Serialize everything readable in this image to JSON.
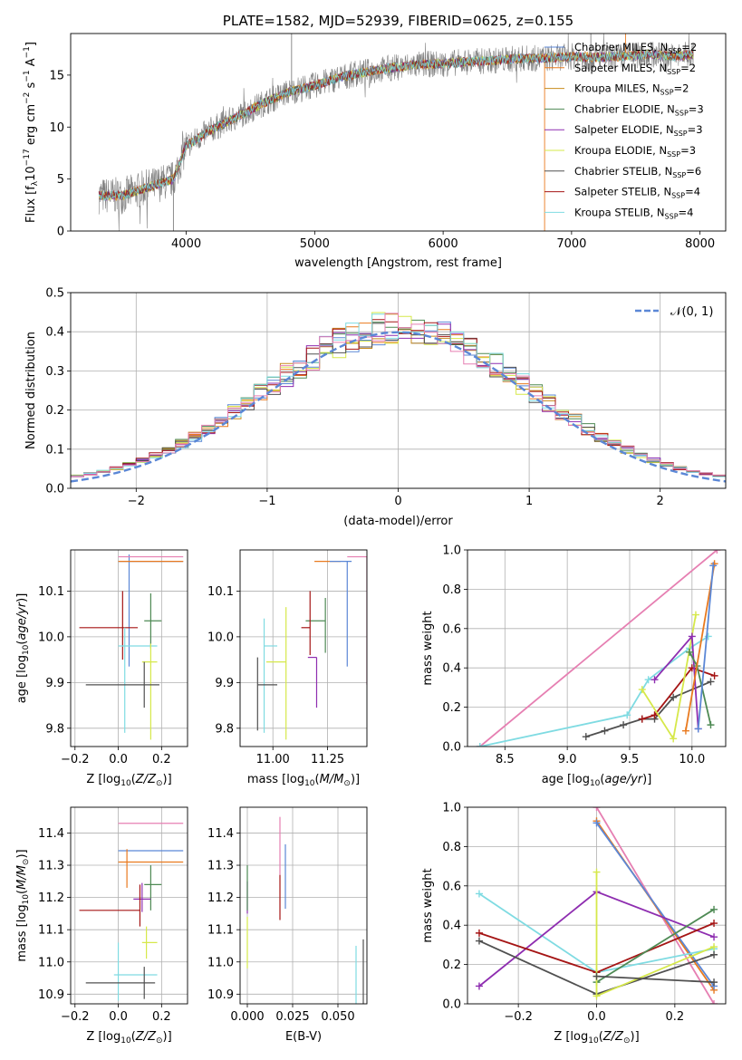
{
  "colors": {
    "chabrier_miles": "#5b87d6",
    "salpeter_miles": "#e97a1f",
    "kroupa_miles": "#c88b1c",
    "chabrier_elodie": "#4e8a54",
    "salpeter_elodie": "#8e2db0",
    "kroupa_elodie": "#d6e84a",
    "chabrier_stelib": "#505050",
    "salpeter_stelib": "#a51515",
    "kroupa_stelib": "#7fdbe2",
    "pink": "#e67fb2",
    "data": "#808080",
    "gauss": "#5b87d6"
  },
  "chart_data": [
    {
      "id": "spectrum",
      "type": "line",
      "title": "PLATE=1582, MJD=52939, FIBERID=0625, z=0.155",
      "xlabel": "wavelength [Angstrom, rest frame]",
      "ylabel": "Flux [f_λ10^-17 erg cm^-2 s^-1 A^-1]",
      "xlim": [
        3100,
        8200
      ],
      "ylim": [
        0,
        19
      ],
      "xticks": [
        4000,
        5000,
        6000,
        7000,
        8000
      ],
      "yticks": [
        0,
        5,
        10,
        15
      ],
      "legend_position": "top-right",
      "legend": [
        "Chabrier MILES, N_SSP=2",
        "Salpeter MILES, N_SSP=2",
        "Kroupa MILES, N_SSP=2",
        "Chabrier ELODIE, N_SSP=3",
        "Salpeter ELODIE, N_SSP=3",
        "Kroupa ELODIE, N_SSP=3",
        "Chabrier STELIB, N_SSP=6",
        "Salpeter STELIB, N_SSP=4",
        "Kroupa STELIB, N_SSP=4"
      ],
      "continuum": [
        [
          3320,
          3.4
        ],
        [
          3500,
          3.4
        ],
        [
          3600,
          3.8
        ],
        [
          3800,
          4.6
        ],
        [
          3900,
          5.0
        ],
        [
          4000,
          8.2
        ],
        [
          4200,
          9.8
        ],
        [
          4400,
          11.0
        ],
        [
          4600,
          12.3
        ],
        [
          4800,
          13.4
        ],
        [
          5000,
          14.0
        ],
        [
          5200,
          14.8
        ],
        [
          5400,
          15.3
        ],
        [
          5600,
          15.7
        ],
        [
          5800,
          16.0
        ],
        [
          6000,
          16.1
        ],
        [
          6200,
          16.3
        ],
        [
          6400,
          16.4
        ],
        [
          6600,
          16.6
        ],
        [
          6800,
          16.6
        ],
        [
          7000,
          16.8
        ],
        [
          7200,
          16.7
        ],
        [
          7400,
          16.8
        ],
        [
          7600,
          17.0
        ],
        [
          7800,
          16.8
        ],
        [
          7950,
          17.0
        ]
      ],
      "spikes": [
        [
          4820,
          19
        ],
        [
          7420,
          19
        ],
        [
          6790,
          0
        ],
        [
          3900,
          0
        ],
        [
          7150,
          19
        ]
      ]
    },
    {
      "id": "residuals",
      "type": "line",
      "xlabel": "(data-model)/error",
      "ylabel": "Normed distribution",
      "xlim": [
        -2.5,
        2.5
      ],
      "ylim": [
        0,
        0.5
      ],
      "xticks": [
        -2,
        -1,
        0,
        1,
        2
      ],
      "yticks": [
        0.0,
        0.1,
        0.2,
        0.3,
        0.4,
        0.5
      ],
      "legend_position": "top-right",
      "legend": [
        "𝒩(0, 1)"
      ],
      "grid": true
    },
    {
      "id": "age-vs-Z",
      "type": "scatter",
      "xlabel": "Z [log10(Z/Z⊙)]",
      "ylabel": "age [log10(age/yr)]",
      "xlim": [
        -0.22,
        0.32
      ],
      "ylim": [
        9.76,
        10.19
      ],
      "xticks": [
        -0.2,
        0.0,
        0.2
      ],
      "yticks": [
        9.8,
        9.9,
        10.0,
        10.1
      ],
      "grid": true,
      "points": [
        {
          "c": "chabrier_miles",
          "x": 0.05,
          "xerr": [
            0.05,
            0.25
          ],
          "y": 10.165,
          "yerr": [
            0.23,
            0.015
          ]
        },
        {
          "c": "salpeter_miles",
          "x": 0.05,
          "xerr": [
            0.05,
            0.25
          ],
          "y": 10.165,
          "yerr": [
            0.0,
            0.0
          ]
        },
        {
          "c": "pink",
          "x": 0.0,
          "xerr": [
            0.0,
            0.3
          ],
          "y": 10.175,
          "yerr": [
            0.0,
            0.0
          ]
        },
        {
          "c": "chabrier_elodie",
          "x": 0.15,
          "xerr": [
            0.03,
            0.05
          ],
          "y": 10.035,
          "yerr": [
            0.06,
            0.06
          ]
        },
        {
          "c": "salpeter_stelib",
          "x": 0.02,
          "xerr": [
            0.2,
            0.07
          ],
          "y": 10.02,
          "yerr": [
            0.07,
            0.08
          ]
        },
        {
          "c": "kroupa_stelib",
          "x": 0.03,
          "xerr": [
            0.03,
            0.15
          ],
          "y": 9.98,
          "yerr": [
            0.19,
            0.04
          ]
        },
        {
          "c": "kroupa_elodie",
          "x": 0.15,
          "xerr": [
            0.04,
            0.03
          ],
          "y": 9.945,
          "yerr": [
            0.17,
            0.04
          ]
        },
        {
          "c": "chabrier_stelib",
          "x": 0.12,
          "xerr": [
            0.27,
            0.07
          ],
          "y": 9.895,
          "yerr": [
            0.05,
            0.05
          ]
        }
      ]
    },
    {
      "id": "age-vs-mass",
      "type": "scatter",
      "xlabel": "mass [log10(M/M⊙)]",
      "ylabel": "",
      "xlim": [
        10.85,
        11.43
      ],
      "ylim": [
        9.76,
        10.19
      ],
      "xticks": [
        11.0,
        11.25
      ],
      "yticks": [
        9.8,
        9.9,
        10.0,
        10.1
      ],
      "grid": true,
      "points": [
        {
          "c": "salpeter_miles",
          "x": 11.31,
          "xerr": [
            0.12,
            0.0
          ],
          "y": 10.165,
          "yerr": [
            0.0,
            0.0
          ]
        },
        {
          "c": "chabrier_miles",
          "x": 11.34,
          "xerr": [
            0.08,
            0.02
          ],
          "y": 10.165,
          "yerr": [
            0.23,
            0.0
          ]
        },
        {
          "c": "pink",
          "x": 11.43,
          "xerr": [
            0.09,
            0.0
          ],
          "y": 10.175,
          "yerr": [
            0.28,
            0.0
          ]
        },
        {
          "c": "chabrier_elodie",
          "x": 11.24,
          "xerr": [
            0.09,
            0.0
          ],
          "y": 10.035,
          "yerr": [
            0.07,
            0.05
          ]
        },
        {
          "c": "salpeter_stelib",
          "x": 11.17,
          "xerr": [
            0.04,
            0.0
          ],
          "y": 10.02,
          "yerr": [
            0.06,
            0.08
          ]
        },
        {
          "c": "salpeter_elodie",
          "x": 11.2,
          "xerr": [
            0.04,
            0.0
          ],
          "y": 9.955,
          "yerr": [
            0.11,
            0.0
          ]
        },
        {
          "c": "kroupa_elodie",
          "x": 11.06,
          "xerr": [
            0.09,
            0.0
          ],
          "y": 9.945,
          "yerr": [
            0.17,
            0.12
          ]
        },
        {
          "c": "kroupa_stelib",
          "x": 10.96,
          "xerr": [
            0.0,
            0.06
          ],
          "y": 9.98,
          "yerr": [
            0.19,
            0.06
          ]
        },
        {
          "c": "chabrier_stelib",
          "x": 10.93,
          "xerr": [
            0.0,
            0.09
          ],
          "y": 9.895,
          "yerr": [
            0.1,
            0.06
          ]
        }
      ]
    },
    {
      "id": "mass-weight-vs-age",
      "type": "line",
      "xlabel": "age [log10(age/yr)]",
      "ylabel": "mass weight",
      "xlim": [
        8.2,
        10.27
      ],
      "ylim": [
        0,
        1
      ],
      "xticks": [
        8.5,
        9.0,
        9.5,
        10.0
      ],
      "yticks": [
        0.0,
        0.2,
        0.4,
        0.6,
        0.8,
        1.0
      ],
      "grid": true,
      "series": [
        {
          "c": "pink",
          "x": [
            8.3,
            10.2
          ],
          "y": [
            0.0,
            1.0
          ]
        },
        {
          "c": "kroupa_stelib",
          "x": [
            8.3,
            9.48,
            9.65,
            9.98,
            10.13
          ],
          "y": [
            0.0,
            0.16,
            0.34,
            0.5,
            0.56
          ]
        },
        {
          "c": "chabrier_stelib",
          "x": [
            9.15,
            9.3,
            9.45,
            9.6,
            9.7,
            9.85,
            10.15
          ],
          "y": [
            0.05,
            0.08,
            0.11,
            0.14,
            0.14,
            0.25,
            0.33
          ]
        },
        {
          "c": "salpeter_stelib",
          "x": [
            9.6,
            9.7,
            10.0,
            10.18
          ],
          "y": [
            0.14,
            0.16,
            0.4,
            0.36
          ]
        },
        {
          "c": "kroupa_elodie",
          "x": [
            9.6,
            9.85,
            10.03
          ],
          "y": [
            0.29,
            0.04,
            0.67
          ]
        },
        {
          "c": "salpeter_elodie",
          "x": [
            9.7,
            10.0,
            10.05
          ],
          "y": [
            0.34,
            0.56,
            0.09
          ]
        },
        {
          "c": "chabrier_elodie",
          "x": [
            9.98,
            10.04,
            10.15
          ],
          "y": [
            0.48,
            0.41,
            0.11
          ]
        },
        {
          "c": "salpeter_miles",
          "x": [
            9.95,
            10.18
          ],
          "y": [
            0.08,
            0.93
          ]
        },
        {
          "c": "chabrier_miles",
          "x": [
            10.05,
            10.17
          ],
          "y": [
            0.09,
            0.92
          ]
        }
      ]
    },
    {
      "id": "mass-vs-Z",
      "type": "scatter",
      "xlabel": "Z [log10(Z/Z⊙)]",
      "ylabel": "mass [log10(M/M⊙)]",
      "xlim": [
        -0.22,
        0.32
      ],
      "ylim": [
        10.87,
        11.48
      ],
      "xticks": [
        -0.2,
        0.0,
        0.2
      ],
      "yticks": [
        10.9,
        11.0,
        11.1,
        11.2,
        11.3,
        11.4
      ],
      "grid": true,
      "points": [
        {
          "c": "pink",
          "x": 0.0,
          "xerr": [
            0.0,
            0.3
          ],
          "y": 11.43,
          "yerr": [
            0.0,
            0.0
          ]
        },
        {
          "c": "chabrier_miles",
          "x": 0.04,
          "xerr": [
            0.04,
            0.26
          ],
          "y": 11.345,
          "yerr": [
            0.0,
            0.0
          ]
        },
        {
          "c": "salpeter_miles",
          "x": 0.04,
          "xerr": [
            0.04,
            0.26
          ],
          "y": 11.31,
          "yerr": [
            0.08,
            0.04
          ]
        },
        {
          "c": "chabrier_elodie",
          "x": 0.15,
          "xerr": [
            0.03,
            0.05
          ],
          "y": 11.24,
          "yerr": [
            0.08,
            0.06
          ]
        },
        {
          "c": "salpeter_elodie",
          "x": 0.11,
          "xerr": [
            0.04,
            0.04
          ],
          "y": 11.195,
          "yerr": [
            0.04,
            0.05
          ]
        },
        {
          "c": "salpeter_stelib",
          "x": 0.1,
          "xerr": [
            0.28,
            0.0
          ],
          "y": 11.16,
          "yerr": [
            0.05,
            0.08
          ]
        },
        {
          "c": "kroupa_elodie",
          "x": 0.13,
          "xerr": [
            0.02,
            0.05
          ],
          "y": 11.06,
          "yerr": [
            0.05,
            0.05
          ]
        },
        {
          "c": "kroupa_stelib",
          "x": 0.0,
          "xerr": [
            0.02,
            0.18
          ],
          "y": 10.96,
          "yerr": [
            0.08,
            0.1
          ]
        },
        {
          "c": "chabrier_stelib",
          "x": 0.12,
          "xerr": [
            0.27,
            0.05
          ],
          "y": 10.935,
          "yerr": [
            0.05,
            0.05
          ]
        }
      ]
    },
    {
      "id": "mass-vs-ebv",
      "type": "scatter",
      "xlabel": "E(B-V)",
      "ylabel": "",
      "xlim": [
        -0.004,
        0.066
      ],
      "ylim": [
        10.87,
        11.48
      ],
      "xticks": [
        0.0,
        0.025,
        0.05
      ],
      "yticks": [
        10.9,
        11.0,
        11.1,
        11.2,
        11.3,
        11.4
      ],
      "grid": true,
      "points": [
        {
          "c": "pink",
          "x": 0.018,
          "xerr": [
            0,
            0
          ],
          "y": 11.36,
          "yerr": [
            0.09,
            0.09
          ]
        },
        {
          "c": "salpeter_stelib",
          "x": 0.018,
          "xerr": [
            0,
            0
          ],
          "y": 11.2,
          "yerr": [
            0.07,
            0.07
          ]
        },
        {
          "c": "chabrier_miles",
          "x": 0.021,
          "xerr": [
            0,
            0
          ],
          "y": 11.265,
          "yerr": [
            0.1,
            0.1
          ]
        },
        {
          "c": "salpeter_elodie",
          "x": 0.0,
          "xerr": [
            0,
            0
          ],
          "y": 11.2,
          "yerr": [
            0.05,
            0.05
          ]
        },
        {
          "c": "chabrier_elodie",
          "x": 0.0,
          "xerr": [
            0,
            0
          ],
          "y": 11.23,
          "yerr": [
            0.07,
            0.07
          ]
        },
        {
          "c": "kroupa_elodie",
          "x": 0.0,
          "xerr": [
            0,
            0
          ],
          "y": 11.06,
          "yerr": [
            0.08,
            0.08
          ]
        },
        {
          "c": "kroupa_stelib",
          "x": 0.06,
          "xerr": [
            0,
            0
          ],
          "y": 10.96,
          "yerr": [
            0.09,
            0.09
          ]
        },
        {
          "c": "chabrier_stelib",
          "x": 0.064,
          "xerr": [
            0,
            0
          ],
          "y": 10.97,
          "yerr": [
            0.1,
            0.1
          ]
        }
      ]
    },
    {
      "id": "mass-weight-vs-Z",
      "type": "line",
      "xlabel": "Z [log10(Z/Z⊙)]",
      "ylabel": "mass weight",
      "xlim": [
        -0.33,
        0.33
      ],
      "ylim": [
        0,
        1
      ],
      "xticks": [
        -0.2,
        0.0,
        0.2
      ],
      "yticks": [
        0.0,
        0.2,
        0.4,
        0.6,
        0.8,
        1.0
      ],
      "grid": true,
      "series": [
        {
          "c": "pink",
          "x": [
            0.0,
            0.3
          ],
          "y": [
            1.0,
            0.0
          ]
        },
        {
          "c": "salpeter_miles",
          "x": [
            0.0,
            0.3
          ],
          "y": [
            0.93,
            0.07
          ]
        },
        {
          "c": "chabrier_miles",
          "x": [
            0.0,
            0.3
          ],
          "y": [
            0.92,
            0.09
          ]
        },
        {
          "c": "kroupa_stelib",
          "x": [
            -0.3,
            0.0,
            0.3
          ],
          "y": [
            0.56,
            0.16,
            0.28
          ]
        },
        {
          "c": "salpeter_elodie",
          "x": [
            -0.3,
            0.0,
            0.3
          ],
          "y": [
            0.09,
            0.57,
            0.34
          ]
        },
        {
          "c": "salpeter_stelib",
          "x": [
            -0.3,
            0.0,
            0.3
          ],
          "y": [
            0.36,
            0.16,
            0.41
          ]
        },
        {
          "c": "chabrier_stelib",
          "x": [
            -0.3,
            0.0,
            0.3
          ],
          "y": [
            0.32,
            0.05,
            0.25
          ]
        },
        {
          "c": "chabrier_elodie",
          "x": [
            0.0,
            0.3
          ],
          "y": [
            0.11,
            0.48
          ]
        },
        {
          "c": "kroupa_elodie",
          "x": [
            0.0,
            0.0,
            0.3
          ],
          "y": [
            0.67,
            0.04,
            0.29
          ]
        },
        {
          "c": "chabrier_stelib",
          "x": [
            0.0,
            0.3
          ],
          "y": [
            0.14,
            0.11
          ]
        }
      ]
    }
  ]
}
